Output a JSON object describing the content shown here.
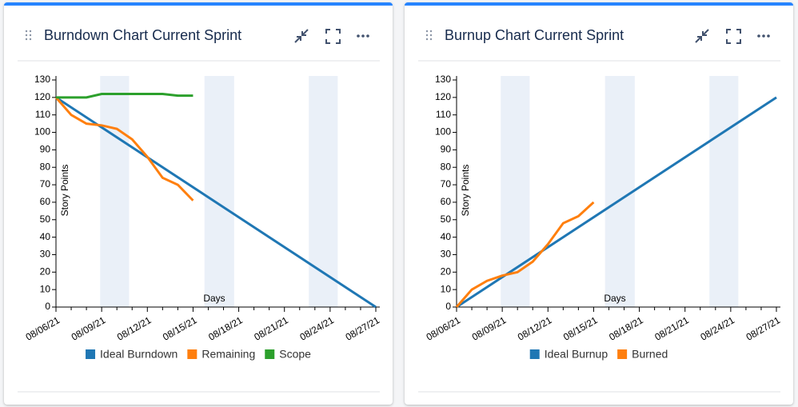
{
  "chart_data": [
    {
      "type": "line",
      "title": "Burndown Chart Current Sprint",
      "xlabel": "Days",
      "ylabel": "Story Points",
      "xlim": [
        0,
        21
      ],
      "ylim": [
        0,
        130
      ],
      "yticks": [
        0,
        10,
        20,
        30,
        40,
        50,
        60,
        70,
        80,
        90,
        100,
        110,
        120,
        130
      ],
      "xticks": [
        {
          "value": 0,
          "label": "08/06/21"
        },
        {
          "value": 3,
          "label": "08/09/21"
        },
        {
          "value": 6,
          "label": "08/12/21"
        },
        {
          "value": 9,
          "label": "08/15/21"
        },
        {
          "value": 12,
          "label": "08/18/21"
        },
        {
          "value": 15,
          "label": "08/21/21"
        },
        {
          "value": 18,
          "label": "08/24/21"
        },
        {
          "value": 21,
          "label": "08/27/21"
        }
      ],
      "xminor_ticks": [
        1,
        2,
        4,
        5,
        7,
        8,
        10,
        11,
        13,
        14,
        16,
        17,
        19,
        20
      ],
      "bands": [
        [
          2.9,
          4.8
        ],
        [
          9.75,
          11.7
        ],
        [
          16.6,
          18.5
        ]
      ],
      "band_color": "#eaf0f8",
      "legend": "bottom",
      "series": [
        {
          "name": "Ideal Burndown",
          "color": "#1f77b4",
          "x": [
            0,
            21
          ],
          "values": [
            120,
            0
          ]
        },
        {
          "name": "Remaining",
          "color": "#ff7f0e",
          "x": [
            0,
            1,
            2,
            3,
            4,
            5,
            6,
            7,
            8,
            9
          ],
          "values": [
            120,
            110,
            105,
            104,
            102,
            96,
            86,
            74,
            70,
            61
          ]
        },
        {
          "name": "Scope",
          "color": "#2ca02c",
          "x": [
            0,
            1,
            2,
            3,
            4,
            5,
            6,
            7,
            8,
            9
          ],
          "values": [
            120,
            120,
            120,
            122,
            122,
            122,
            122,
            122,
            121,
            121
          ]
        }
      ]
    },
    {
      "type": "line",
      "title": "Burnup Chart Current Sprint",
      "xlabel": "Days",
      "ylabel": "Story Points",
      "xlim": [
        0,
        21
      ],
      "ylim": [
        0,
        130
      ],
      "yticks": [
        0,
        10,
        20,
        30,
        40,
        50,
        60,
        70,
        80,
        90,
        100,
        110,
        120,
        130
      ],
      "xticks": [
        {
          "value": 0,
          "label": "08/06/21"
        },
        {
          "value": 3,
          "label": "08/09/21"
        },
        {
          "value": 6,
          "label": "08/12/21"
        },
        {
          "value": 9,
          "label": "08/15/21"
        },
        {
          "value": 12,
          "label": "08/18/21"
        },
        {
          "value": 15,
          "label": "08/21/21"
        },
        {
          "value": 18,
          "label": "08/24/21"
        },
        {
          "value": 21,
          "label": "08/27/21"
        }
      ],
      "xminor_ticks": [
        1,
        2,
        4,
        5,
        7,
        8,
        10,
        11,
        13,
        14,
        16,
        17,
        19,
        20
      ],
      "bands": [
        [
          2.9,
          4.8
        ],
        [
          9.75,
          11.7
        ],
        [
          16.6,
          18.5
        ]
      ],
      "band_color": "#eaf0f8",
      "legend": "bottom",
      "series": [
        {
          "name": "Ideal Burnup",
          "color": "#1f77b4",
          "x": [
            0,
            21
          ],
          "values": [
            0,
            120
          ]
        },
        {
          "name": "Burned",
          "color": "#ff7f0e",
          "x": [
            0,
            1,
            2,
            3,
            4,
            5,
            6,
            7,
            8,
            9
          ],
          "values": [
            0,
            10,
            15,
            18,
            20,
            26,
            36,
            48,
            52,
            60
          ]
        }
      ]
    }
  ]
}
